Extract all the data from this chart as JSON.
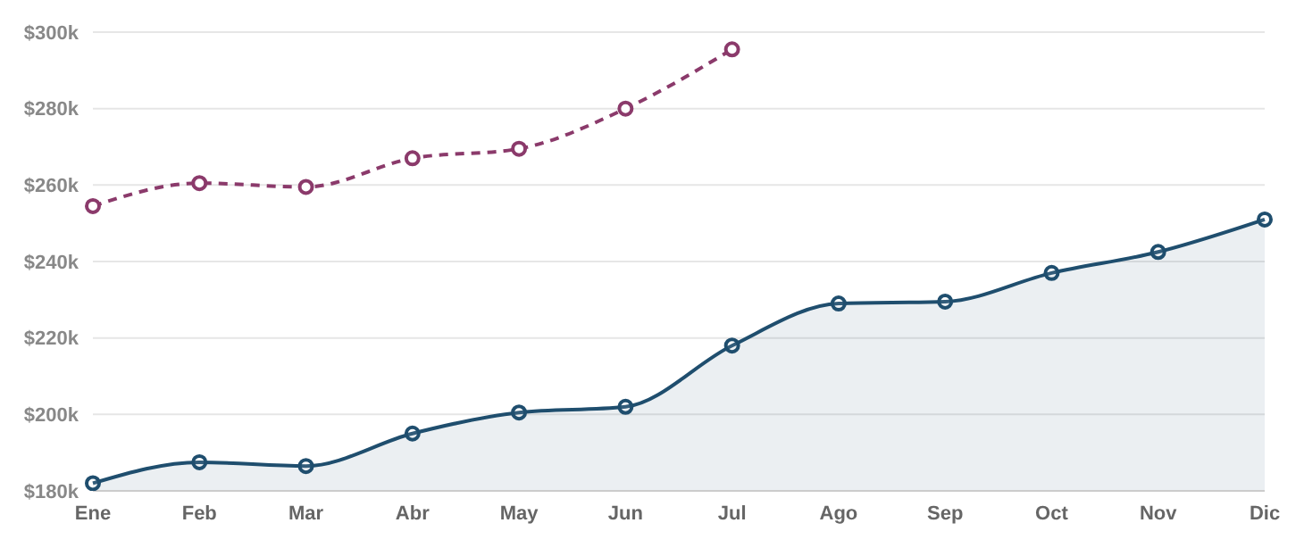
{
  "chart_data": {
    "type": "line",
    "categories": [
      "Ene",
      "Feb",
      "Mar",
      "Abr",
      "May",
      "Jun",
      "Jul",
      "Ago",
      "Sep",
      "Oct",
      "Nov",
      "Dic"
    ],
    "series": [
      {
        "type": "area",
        "color": "#1f4e6e",
        "values": [
          182,
          187.5,
          186.5,
          195,
          200.5,
          202,
          218,
          229,
          229.5,
          237,
          242.5,
          251
        ]
      },
      {
        "color": "#8b3a6b",
        "line_style": "dashed",
        "values": [
          254.5,
          260.5,
          259.5,
          267,
          269.5,
          280,
          295.5,
          null,
          null,
          null,
          null,
          null
        ]
      }
    ],
    "ylim": [
      180,
      300
    ],
    "yticks": [
      {
        "value": 180,
        "label": "$180k"
      },
      {
        "value": 200,
        "label": "$200k"
      },
      {
        "value": 220,
        "label": "$220k"
      },
      {
        "value": 240,
        "label": "$240k"
      },
      {
        "value": 260,
        "label": "$260k"
      },
      {
        "value": 280,
        "label": "$280k"
      },
      {
        "value": 300,
        "label": "$300k"
      }
    ],
    "grid": "y",
    "marker": "circle",
    "legend": false
  }
}
